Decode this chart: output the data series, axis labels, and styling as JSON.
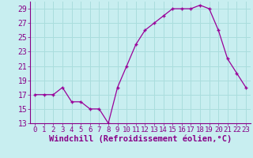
{
  "x": [
    0,
    1,
    2,
    3,
    4,
    5,
    6,
    7,
    8,
    9,
    10,
    11,
    12,
    13,
    14,
    15,
    16,
    17,
    18,
    19,
    20,
    21,
    22,
    23
  ],
  "y": [
    17,
    17,
    17,
    18,
    16,
    16,
    15,
    15,
    13,
    18,
    21,
    24,
    26,
    27,
    28,
    29,
    29,
    29,
    29.5,
    29,
    26,
    22,
    20,
    18
  ],
  "line_color": "#990099",
  "marker": "+",
  "bg_color": "#c8eef0",
  "grid_color": "#aadddd",
  "xlabel": "Windchill (Refroidissement éolien,°C)",
  "xlabel_fontsize": 7.5,
  "tick_fontsize": 7,
  "ylim": [
    13,
    30
  ],
  "yticks": [
    13,
    15,
    17,
    19,
    21,
    23,
    25,
    27,
    29
  ],
  "xlim": [
    -0.5,
    23.5
  ],
  "xticks": [
    0,
    1,
    2,
    3,
    4,
    5,
    6,
    7,
    8,
    9,
    10,
    11,
    12,
    13,
    14,
    15,
    16,
    17,
    18,
    19,
    20,
    21,
    22,
    23
  ]
}
